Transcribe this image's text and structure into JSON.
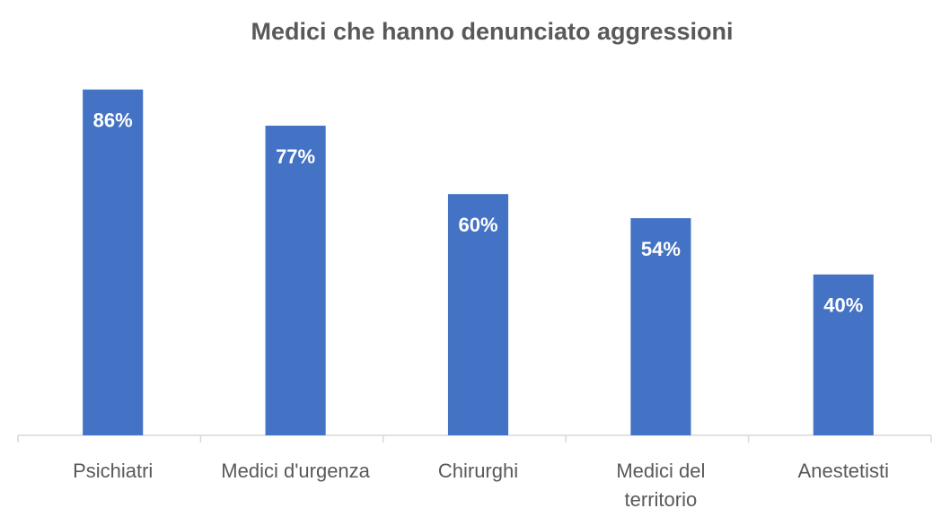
{
  "chart_data": {
    "type": "bar",
    "title": "Medici che hanno denunciato aggressioni",
    "categories": [
      "Psichiatri",
      "Medici d'urgenza",
      "Chirurghi",
      "Medici del territorio",
      "Anestetisti"
    ],
    "values": [
      86,
      77,
      60,
      54,
      40
    ],
    "value_labels": [
      "86%",
      "77%",
      "60%",
      "54%",
      "40%"
    ],
    "color": "#4472c4",
    "ylim": [
      0,
      100
    ]
  }
}
